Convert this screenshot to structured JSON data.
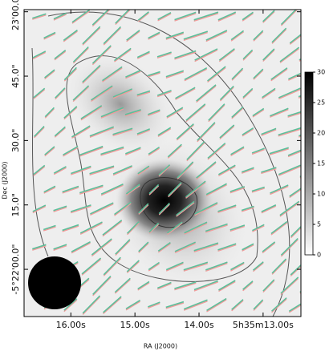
{
  "chart_data": {
    "type": "image",
    "xlabel": "RA (J2000)",
    "ylabel": "Dec (J2000)",
    "xlim": [
      16.73,
      12.41
    ],
    "xticks": [
      {
        "value": 16,
        "label": "16.00s"
      },
      {
        "value": 15,
        "label": "15.00s"
      },
      {
        "value": 14,
        "label": "14.00s"
      },
      {
        "value": 13,
        "label": "5h35m13.00s"
      }
    ],
    "ylim": [
      60.5,
      -11
    ],
    "yticks": [
      {
        "value": 0,
        "label": "-5°22'00.0\""
      },
      {
        "value": 15,
        "label": "15.0\""
      },
      {
        "value": 30,
        "label": "30.0\""
      },
      {
        "value": 45,
        "label": "45.0\""
      },
      {
        "value": 60,
        "label": "23'00.0\""
      }
    ],
    "colorbar": {
      "lim": [
        0,
        30
      ],
      "ticks": [
        0,
        5,
        10,
        15,
        20,
        25,
        30
      ]
    }
  }
}
